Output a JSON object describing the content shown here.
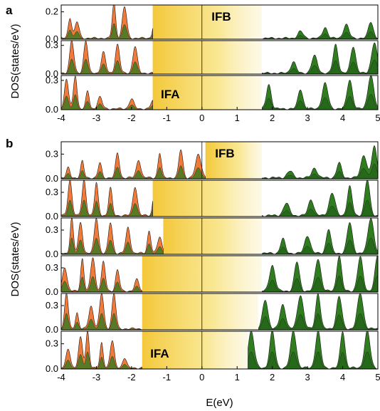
{
  "chart_data": [
    {
      "type": "area",
      "panel_label": "a",
      "ylabel": "DOS(states/eV)",
      "xlim": [
        -4,
        5
      ],
      "x_ticks": [
        "-4",
        "-3",
        "-2",
        "-1",
        "0",
        "1",
        "2",
        "3",
        "4",
        "5"
      ],
      "band_labels": [
        "IFB",
        "IFA"
      ],
      "colors": {
        "occupied": "#f07a3a",
        "unoccupied": "#2f7d1e",
        "gap": "#f6cf2f"
      },
      "series": [
        {
          "gap": [
            -1.4,
            1.7
          ],
          "ylim": [
            0,
            0.25
          ],
          "y_ticks": [
            "0.0",
            "0.2"
          ],
          "peaks": [
            [
              -3.75,
              0.15
            ],
            [
              -3.55,
              0.12
            ],
            [
              -2.5,
              0.26
            ],
            [
              -2.2,
              0.23
            ],
            [
              -1.3,
              0.26
            ],
            [
              -0.9,
              0.26
            ],
            [
              -0.3,
              0.24
            ],
            [
              2.8,
              0.05
            ],
            [
              3.5,
              0.08
            ],
            [
              4.1,
              0.1
            ],
            [
              4.8,
              0.12
            ]
          ]
        },
        {
          "gap": [
            -1.4,
            1.7
          ],
          "ylim": [
            0,
            0.35
          ],
          "y_ticks": [
            "0.0",
            "0.3"
          ],
          "peaks": [
            [
              -3.7,
              0.34
            ],
            [
              -3.3,
              0.34
            ],
            [
              -2.8,
              0.22
            ],
            [
              -2.4,
              0.3
            ],
            [
              -1.9,
              0.28
            ],
            [
              -1.1,
              0.18
            ],
            [
              -0.3,
              0.33
            ],
            [
              2.6,
              0.12
            ],
            [
              3.2,
              0.18
            ],
            [
              3.8,
              0.3
            ],
            [
              4.3,
              0.28
            ],
            [
              4.9,
              0.32
            ]
          ]
        },
        {
          "gap": [
            -1.4,
            1.7
          ],
          "ylim": [
            0,
            0.35
          ],
          "y_ticks": [
            "0.0",
            "0.3"
          ],
          "peaks": [
            [
              -3.85,
              0.3
            ],
            [
              -3.6,
              0.34
            ],
            [
              -3.25,
              0.18
            ],
            [
              -2.9,
              0.12
            ],
            [
              -2.0,
              0.1
            ],
            [
              -1.4,
              0.08
            ],
            [
              1.9,
              0.25
            ],
            [
              2.8,
              0.2
            ],
            [
              3.5,
              0.26
            ],
            [
              4.2,
              0.3
            ],
            [
              4.8,
              0.34
            ]
          ]
        }
      ]
    },
    {
      "type": "area",
      "panel_label": "b",
      "ylabel": "DOS(states/eV)",
      "xlabel": "E(eV)",
      "xlim": [
        -4,
        5
      ],
      "x_ticks": [
        "-4",
        "-3",
        "-2",
        "-1",
        "0",
        "1",
        "2",
        "3",
        "4",
        "5"
      ],
      "band_labels": [
        "IFB",
        "IFA"
      ],
      "colors": {
        "occupied": "#f07a3a",
        "unoccupied": "#2f7d1e",
        "gap": "#f6cf2f"
      },
      "series": [
        {
          "gap": [
            0.1,
            1.7
          ],
          "ylim": [
            0,
            0.45
          ],
          "y_ticks": [
            "0.0",
            "0.3"
          ],
          "peaks": [
            [
              -3.8,
              0.12
            ],
            [
              -3.4,
              0.2
            ],
            [
              -2.9,
              0.18
            ],
            [
              -2.4,
              0.3
            ],
            [
              -1.8,
              0.22
            ],
            [
              -1.2,
              0.3
            ],
            [
              -0.6,
              0.34
            ],
            [
              -0.1,
              0.28
            ],
            [
              2.5,
              0.08
            ],
            [
              3.2,
              0.12
            ],
            [
              3.9,
              0.18
            ],
            [
              4.6,
              0.28
            ],
            [
              4.9,
              0.38
            ]
          ]
        },
        {
          "gap": [
            -1.4,
            1.7
          ],
          "ylim": [
            0,
            0.45
          ],
          "y_ticks": [
            "0.0",
            "0.3"
          ],
          "peaks": [
            [
              -3.75,
              0.44
            ],
            [
              -3.35,
              0.44
            ],
            [
              -3.0,
              0.4
            ],
            [
              -2.6,
              0.34
            ],
            [
              -1.9,
              0.36
            ],
            [
              -1.35,
              0.3
            ],
            [
              -0.4,
              0.42
            ],
            [
              2.4,
              0.15
            ],
            [
              3.1,
              0.2
            ],
            [
              3.7,
              0.28
            ],
            [
              4.2,
              0.36
            ],
            [
              4.7,
              0.44
            ]
          ]
        },
        {
          "gap": [
            -1.1,
            1.7
          ],
          "ylim": [
            0,
            0.45
          ],
          "y_ticks": [
            "0.0",
            "0.3"
          ],
          "peaks": [
            [
              -3.7,
              0.44
            ],
            [
              -3.45,
              0.38
            ],
            [
              -3.0,
              0.44
            ],
            [
              -2.6,
              0.38
            ],
            [
              -2.1,
              0.32
            ],
            [
              -1.5,
              0.28
            ],
            [
              -1.2,
              0.2
            ],
            [
              2.3,
              0.18
            ],
            [
              3.0,
              0.22
            ],
            [
              3.6,
              0.3
            ],
            [
              4.2,
              0.38
            ],
            [
              4.8,
              0.44
            ]
          ]
        },
        {
          "gap": [
            -1.7,
            1.7
          ],
          "ylim": [
            0,
            0.45
          ],
          "y_ticks": [
            "0.0",
            "0.3"
          ],
          "peaks": [
            [
              -3.9,
              0.3
            ],
            [
              -3.4,
              0.4
            ],
            [
              -3.1,
              0.42
            ],
            [
              -2.8,
              0.36
            ],
            [
              -2.4,
              0.26
            ],
            [
              -1.85,
              0.14
            ],
            [
              -1.3,
              0.08
            ],
            [
              2.0,
              0.32
            ],
            [
              2.7,
              0.36
            ],
            [
              3.3,
              0.4
            ],
            [
              3.9,
              0.44
            ],
            [
              4.5,
              0.42
            ],
            [
              5.0,
              0.44
            ]
          ]
        },
        {
          "gap": [
            -1.7,
            1.6
          ],
          "ylim": [
            0,
            0.45
          ],
          "y_ticks": [
            "0.0",
            "0.3"
          ],
          "peaks": [
            [
              -3.85,
              0.44
            ],
            [
              -3.55,
              0.2
            ],
            [
              -3.15,
              0.28
            ],
            [
              -2.85,
              0.44
            ],
            [
              -2.5,
              0.44
            ],
            [
              1.8,
              0.36
            ],
            [
              2.3,
              0.3
            ],
            [
              2.8,
              0.42
            ],
            [
              3.3,
              0.44
            ],
            [
              3.9,
              0.4
            ],
            [
              4.5,
              0.44
            ]
          ]
        },
        {
          "gap": [
            -1.7,
            1.3
          ],
          "ylim": [
            0,
            0.45
          ],
          "y_ticks": [
            "0.0",
            "0.3"
          ],
          "peaks": [
            [
              -3.8,
              0.22
            ],
            [
              -3.45,
              0.36
            ],
            [
              -3.25,
              0.44
            ],
            [
              -2.85,
              0.3
            ],
            [
              -2.55,
              0.32
            ],
            [
              -2.2,
              0.12
            ],
            [
              1.4,
              0.44
            ],
            [
              2.0,
              0.44
            ],
            [
              2.6,
              0.44
            ],
            [
              3.3,
              0.44
            ],
            [
              4.0,
              0.44
            ],
            [
              4.7,
              0.44
            ]
          ]
        }
      ]
    }
  ]
}
